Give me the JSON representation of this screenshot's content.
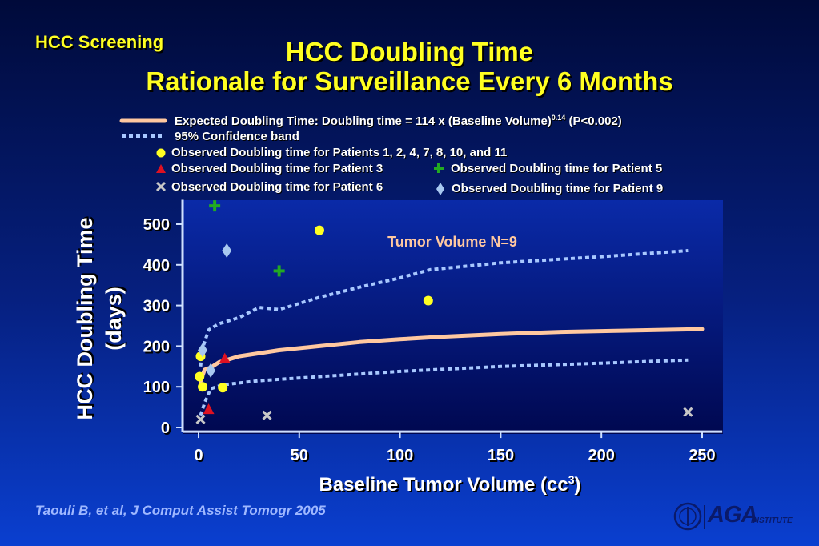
{
  "header": {
    "section": "HCC Screening",
    "title_line1": "HCC Doubling Time",
    "title_line2": "Rationale for Surveillance Every 6 Months"
  },
  "legend": {
    "expected_pre": "Expected Doubling Time: Doubling time = 114 x (Baseline Volume)",
    "expected_sup": "0.14",
    "expected_post": " (P<0.002)",
    "confidence": "95% Confidence band",
    "observed_group": "Observed Doubling time for Patients 1, 2, 4, 7, 8, 10, and 11",
    "observed_p3": "Observed Doubling time for Patient 3",
    "observed_p5": "Observed Doubling time for Patient 5",
    "observed_p6": "Observed Doubling time for Patient 6",
    "observed_p9": "Observed Doubling time for Patient 9"
  },
  "citation": "Taouli B, et al, J Comput Assist Tomogr 2005",
  "logo": {
    "main": "AGA",
    "sub": "INSTITUTE"
  },
  "colors": {
    "title": "#ffff22",
    "curve": "#ffc8a0",
    "band": "#a8c8ff",
    "group": "#ffff22",
    "patient3": "#dd1122",
    "patient5": "#22aa22",
    "patient6": "#c8c8c8",
    "patient9": "#a8c8f0",
    "plot_bg": "#001080"
  },
  "chart_data": {
    "type": "scatter",
    "xlabel": "Baseline Tumor Volume (cc",
    "xlabel_sup": "3",
    "xlabel_end": ")",
    "ylabel_line1": "HCC Doubling Time",
    "ylabel_line2": "(days)",
    "annotation": "Tumor Volume N=9",
    "xlim": [
      0,
      260
    ],
    "ylim": [
      -10,
      560
    ],
    "x_ticks": [
      0,
      50,
      100,
      150,
      200,
      250
    ],
    "y_ticks": [
      0,
      100,
      200,
      300,
      400,
      500
    ],
    "expected_curve": [
      [
        1,
        114
      ],
      [
        3,
        142
      ],
      [
        6,
        147
      ],
      [
        10,
        160
      ],
      [
        20,
        175
      ],
      [
        40,
        190
      ],
      [
        60,
        200
      ],
      [
        80,
        210
      ],
      [
        100,
        217
      ],
      [
        120,
        223
      ],
      [
        150,
        230
      ],
      [
        180,
        235
      ],
      [
        210,
        238
      ],
      [
        250,
        242
      ]
    ],
    "confidence_upper": [
      [
        1,
        150
      ],
      [
        2,
        195
      ],
      [
        5,
        240
      ],
      [
        10,
        255
      ],
      [
        20,
        270
      ],
      [
        30,
        295
      ],
      [
        40,
        290
      ],
      [
        60,
        320
      ],
      [
        80,
        345
      ],
      [
        100,
        368
      ],
      [
        115,
        388
      ],
      [
        150,
        405
      ],
      [
        200,
        420
      ],
      [
        243,
        435
      ]
    ],
    "confidence_lower": [
      [
        1,
        30
      ],
      [
        3,
        60
      ],
      [
        6,
        95
      ],
      [
        12,
        105
      ],
      [
        30,
        115
      ],
      [
        60,
        125
      ],
      [
        100,
        138
      ],
      [
        150,
        150
      ],
      [
        200,
        158
      ],
      [
        243,
        166
      ]
    ],
    "series": [
      {
        "name": "Observed Doubling time for Patients 1, 2, 4, 7, 8, 10, and 11",
        "marker": "circle",
        "points": [
          [
            0.5,
            125
          ],
          [
            1,
            175
          ],
          [
            2,
            100
          ],
          [
            12,
            98
          ],
          [
            60,
            485
          ],
          [
            114,
            312
          ]
        ]
      },
      {
        "name": "Observed Doubling time for Patient 3",
        "marker": "triangle",
        "points": [
          [
            5,
            45
          ],
          [
            13,
            170
          ]
        ]
      },
      {
        "name": "Observed Doubling time for Patient 5",
        "marker": "plus",
        "points": [
          [
            8,
            545
          ],
          [
            40,
            385
          ]
        ]
      },
      {
        "name": "Observed Doubling time for Patient 6",
        "marker": "x",
        "points": [
          [
            1,
            20
          ],
          [
            34,
            30
          ],
          [
            243,
            38
          ]
        ]
      },
      {
        "name": "Observed Doubling time for Patient 9",
        "marker": "diamond",
        "points": [
          [
            2,
            190
          ],
          [
            6,
            140
          ],
          [
            14,
            435
          ]
        ]
      }
    ]
  }
}
